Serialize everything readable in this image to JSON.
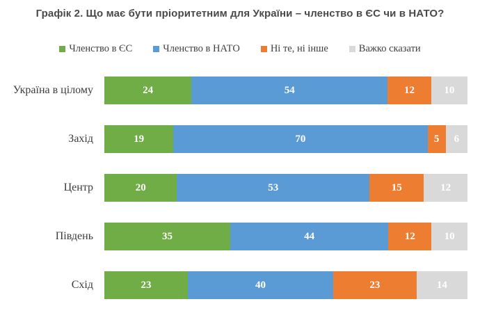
{
  "title": "Графік 2. Що має бути пріоритетним для України – членство в ЄС чи в НАТО?",
  "colors": {
    "background": "#ffffff",
    "title_text": "#4a4a4a",
    "axis_label_text": "#3c3c3c",
    "data_label_text": "#ffffff",
    "series_green": "#70AD47",
    "series_blue": "#5B9BD5",
    "series_orange": "#ED7D31",
    "series_gray": "#D9D9D9"
  },
  "chart_data": {
    "type": "bar",
    "variant": "horizontal-stacked",
    "title": "Графік 2. Що має бути пріоритетним для України – членство в ЄС чи в НАТО?",
    "categories": [
      "Україна в цілому",
      "Захід",
      "Центр",
      "Південь",
      "Схід"
    ],
    "series": [
      {
        "name": "Членство в ЄС",
        "color": "#70AD47",
        "values": [
          24,
          19,
          20,
          35,
          23
        ]
      },
      {
        "name": "Членство в НАТО",
        "color": "#5B9BD5",
        "values": [
          54,
          70,
          53,
          44,
          40
        ]
      },
      {
        "name": "Ні те, ні інше",
        "color": "#ED7D31",
        "values": [
          12,
          5,
          15,
          12,
          23
        ]
      },
      {
        "name": "Важко сказати",
        "color": "#D9D9D9",
        "values": [
          10,
          6,
          12,
          10,
          14
        ]
      }
    ],
    "xlabel": "",
    "ylabel": "",
    "xlim": [
      0,
      100
    ],
    "grid": false,
    "legend_position": "top",
    "data_labels": "shown-inside-white"
  }
}
